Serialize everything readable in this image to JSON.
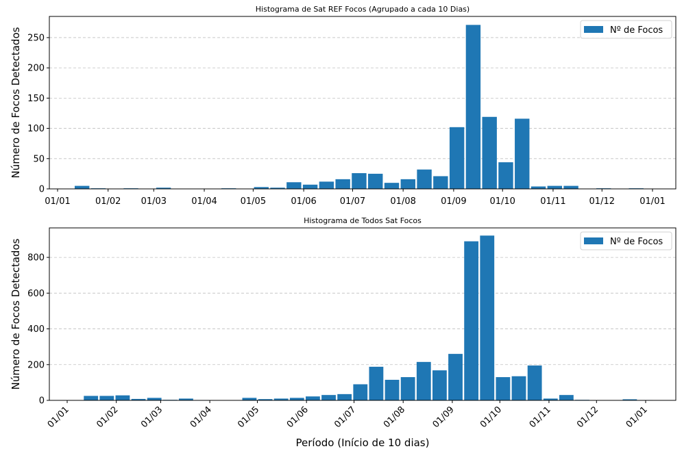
{
  "figure": {
    "xlabel": "Período (Início de 10 dias)",
    "bar_color": "#1f77b4",
    "grid_color": "#b0b0b0"
  },
  "chart_data": [
    {
      "type": "bar",
      "title": "Histograma de Sat REF Focos (Agrupado a cada 10 Dias)",
      "ylabel": "Número de Focos Detectados",
      "xlabel": "",
      "legend": {
        "label": "Nº de Focos",
        "placement": "top-right"
      },
      "grid": {
        "y": true,
        "x": false,
        "style": "dashed"
      },
      "ylim": [
        0,
        285
      ],
      "yticks": [
        0,
        50,
        100,
        150,
        200,
        250
      ],
      "xticks": [
        "01/01",
        "01/02",
        "01/03",
        "01/04",
        "01/05",
        "01/06",
        "01/07",
        "01/08",
        "01/09",
        "01/10",
        "01/11",
        "01/12",
        "01/01"
      ],
      "xtick_rotation": 0,
      "x_unit": "10-day bins (start date)",
      "bins": [
        {
          "start": "2023-01-01",
          "value": 0
        },
        {
          "start": "2023-01-11",
          "value": 5
        },
        {
          "start": "2023-01-21",
          "value": 1
        },
        {
          "start": "2023-01-31",
          "value": 0
        },
        {
          "start": "2023-02-10",
          "value": 1
        },
        {
          "start": "2023-02-20",
          "value": 0
        },
        {
          "start": "2023-03-02",
          "value": 2
        },
        {
          "start": "2023-03-12",
          "value": 0
        },
        {
          "start": "2023-03-22",
          "value": 0
        },
        {
          "start": "2023-04-01",
          "value": 0
        },
        {
          "start": "2023-04-11",
          "value": 1
        },
        {
          "start": "2023-04-21",
          "value": 0
        },
        {
          "start": "2023-05-01",
          "value": 3
        },
        {
          "start": "2023-05-11",
          "value": 2
        },
        {
          "start": "2023-05-21",
          "value": 11
        },
        {
          "start": "2023-05-31",
          "value": 7
        },
        {
          "start": "2023-06-10",
          "value": 12
        },
        {
          "start": "2023-06-20",
          "value": 16
        },
        {
          "start": "2023-06-30",
          "value": 26
        },
        {
          "start": "2023-07-10",
          "value": 25
        },
        {
          "start": "2023-07-20",
          "value": 10
        },
        {
          "start": "2023-07-30",
          "value": 16
        },
        {
          "start": "2023-08-09",
          "value": 32
        },
        {
          "start": "2023-08-19",
          "value": 21
        },
        {
          "start": "2023-08-29",
          "value": 102
        },
        {
          "start": "2023-09-08",
          "value": 271
        },
        {
          "start": "2023-09-18",
          "value": 119
        },
        {
          "start": "2023-09-28",
          "value": 44
        },
        {
          "start": "2023-10-08",
          "value": 116
        },
        {
          "start": "2023-10-18",
          "value": 4
        },
        {
          "start": "2023-10-28",
          "value": 5
        },
        {
          "start": "2023-11-07",
          "value": 5
        },
        {
          "start": "2023-11-17",
          "value": 0
        },
        {
          "start": "2023-11-27",
          "value": 1
        },
        {
          "start": "2023-12-07",
          "value": 0
        },
        {
          "start": "2023-12-17",
          "value": 1
        }
      ]
    },
    {
      "type": "bar",
      "title": "Histograma de Todos Sat Focos",
      "ylabel": "Número de Focos Detectados",
      "xlabel": "Período (Início de 10 dias)",
      "legend": {
        "label": "Nº de Focos",
        "placement": "top-right"
      },
      "grid": {
        "y": true,
        "x": false,
        "style": "dashed"
      },
      "ylim": [
        0,
        965
      ],
      "yticks": [
        0,
        200,
        400,
        600,
        800
      ],
      "xticks": [
        "01/01",
        "01/02",
        "01/03",
        "01/04",
        "01/05",
        "01/06",
        "01/07",
        "01/08",
        "01/09",
        "01/10",
        "01/11",
        "01/12",
        "01/01"
      ],
      "xtick_rotation": -45,
      "x_unit": "10-day bins (start date)",
      "bins": [
        {
          "start": "2023-01-01",
          "value": 0
        },
        {
          "start": "2023-01-11",
          "value": 25
        },
        {
          "start": "2023-01-21",
          "value": 25
        },
        {
          "start": "2023-01-31",
          "value": 28
        },
        {
          "start": "2023-02-10",
          "value": 8
        },
        {
          "start": "2023-02-20",
          "value": 14
        },
        {
          "start": "2023-03-02",
          "value": 3
        },
        {
          "start": "2023-03-12",
          "value": 10
        },
        {
          "start": "2023-03-22",
          "value": 2
        },
        {
          "start": "2023-04-01",
          "value": 0
        },
        {
          "start": "2023-04-11",
          "value": 0
        },
        {
          "start": "2023-04-21",
          "value": 14
        },
        {
          "start": "2023-05-01",
          "value": 7
        },
        {
          "start": "2023-05-11",
          "value": 10
        },
        {
          "start": "2023-05-21",
          "value": 14
        },
        {
          "start": "2023-05-31",
          "value": 22
        },
        {
          "start": "2023-06-10",
          "value": 30
        },
        {
          "start": "2023-06-20",
          "value": 35
        },
        {
          "start": "2023-06-30",
          "value": 90
        },
        {
          "start": "2023-07-10",
          "value": 188
        },
        {
          "start": "2023-07-20",
          "value": 115
        },
        {
          "start": "2023-07-30",
          "value": 130
        },
        {
          "start": "2023-08-09",
          "value": 215
        },
        {
          "start": "2023-08-19",
          "value": 168
        },
        {
          "start": "2023-08-29",
          "value": 260
        },
        {
          "start": "2023-09-08",
          "value": 890
        },
        {
          "start": "2023-09-18",
          "value": 922
        },
        {
          "start": "2023-09-28",
          "value": 130
        },
        {
          "start": "2023-10-08",
          "value": 135
        },
        {
          "start": "2023-10-18",
          "value": 195
        },
        {
          "start": "2023-10-28",
          "value": 10
        },
        {
          "start": "2023-11-07",
          "value": 30
        },
        {
          "start": "2023-11-17",
          "value": 3
        },
        {
          "start": "2023-11-27",
          "value": 0
        },
        {
          "start": "2023-12-07",
          "value": 0
        },
        {
          "start": "2023-12-17",
          "value": 6
        },
        {
          "start": "2023-12-27",
          "value": 2
        }
      ]
    }
  ]
}
